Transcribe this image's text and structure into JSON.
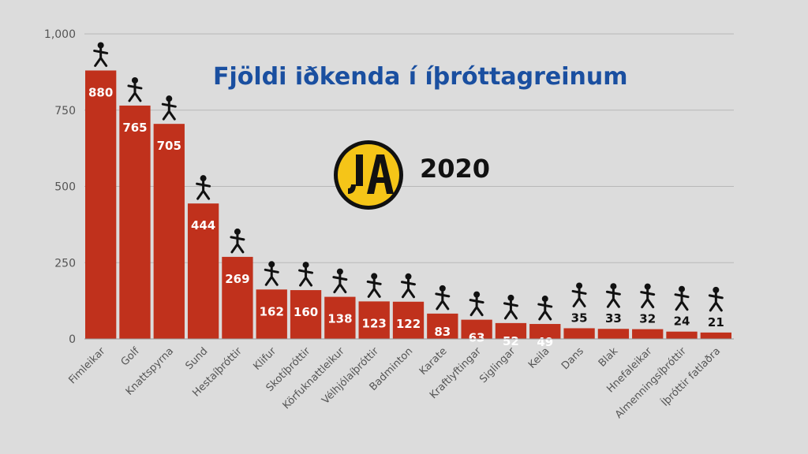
{
  "title": "Fjöldi iðkenda í íþróttagreinum",
  "year": "2020",
  "logo_text": "ÍA",
  "colors": {
    "bar": "#c0311c",
    "background": "#dcdcdc",
    "title": "#1a4fa0",
    "logo_fill": "#f5c518"
  },
  "chart_data": {
    "type": "bar",
    "title": "Fjöldi iðkenda í íþróttagreinum",
    "xlabel": "",
    "ylabel": "",
    "ylim": [
      0,
      1000
    ],
    "yticks": [
      "0",
      "250",
      "500",
      "750",
      "1,000"
    ],
    "grid": true,
    "categories": [
      "Fimleikar",
      "Golf",
      "Knattspyrna",
      "Sund",
      "Hestaíþróttir",
      "Klifur",
      "Skotíþróttir",
      "Körfuknattleikur",
      "Vélhjólaíþróttir",
      "Badminton",
      "Karate",
      "Kraftlyftingar",
      "Siglingar",
      "Keila",
      "Dans",
      "Blak",
      "Hnefaleikar",
      "Almenningsíþróttir",
      "Íþróttir fatlaðra"
    ],
    "values": [
      880,
      765,
      705,
      444,
      269,
      162,
      160,
      138,
      123,
      122,
      83,
      63,
      52,
      49,
      35,
      33,
      32,
      24,
      21
    ],
    "value_labels": [
      "880",
      "765",
      "705",
      "444",
      "269",
      "162",
      "160",
      "138",
      "123",
      "122",
      "83",
      "63",
      "52",
      "49",
      "35",
      "33",
      "32",
      "24",
      "21"
    ],
    "icons": [
      "gymnast-icon",
      "golfer-icon",
      "soccer-player-icon",
      "swimmer-icon",
      "horse-rider-icon",
      "climber-icon",
      "shooter-icon",
      "basketball-player-icon",
      "motorcycle-icon",
      "badminton-player-icon",
      "karate-icon",
      "weightlifter-icon",
      "sailboat-icon",
      "bowling-icon",
      "dancer-icon",
      "volleyball-player-icon",
      "boxer-icon",
      "runner-icon",
      "para-athlete-icon"
    ]
  }
}
